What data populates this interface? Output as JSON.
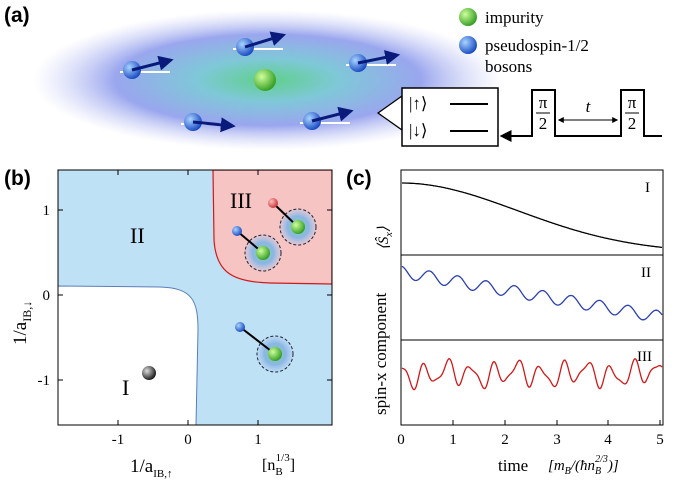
{
  "panel_a": {
    "label": "(a)",
    "legend": [
      "impurity",
      "pseudospin-1/2",
      "bosons"
    ],
    "states": [
      "|↑⟩",
      "|↓⟩"
    ],
    "pulses": [
      {
        "numerator": "π",
        "denominator": "2"
      },
      {
        "numerator": "π",
        "denominator": "2"
      }
    ],
    "interval": "t"
  },
  "panel_b": {
    "label": "(b)",
    "regions": [
      "I",
      "II",
      "III"
    ],
    "x_ticks": [
      "-1",
      "0",
      "1"
    ],
    "y_ticks": [
      "1",
      "0",
      "-1"
    ],
    "x_label": {
      "main": "1/a",
      "sub": "IB,↑"
    },
    "y_label": {
      "main": "1/a",
      "sub": "IB,↓"
    },
    "unit": {
      "open": "[n",
      "sub": "B",
      "sup": "1/3",
      "close": "]"
    }
  },
  "panel_c": {
    "label": "(c)",
    "regions": [
      "I",
      "II",
      "III"
    ],
    "x_ticks": [
      "0",
      "1",
      "2",
      "3",
      "4",
      "5"
    ],
    "y_label": "spin-x component",
    "observable": {
      "open": "⟨Ŝ",
      "sub": "x",
      "close": "⟩"
    },
    "x_label": "time",
    "unit": {
      "open": "[m",
      "sub1": "B",
      "mid": "/(ħn",
      "sub2": "B",
      "sup": "2/3",
      "close": ")]"
    }
  }
}
